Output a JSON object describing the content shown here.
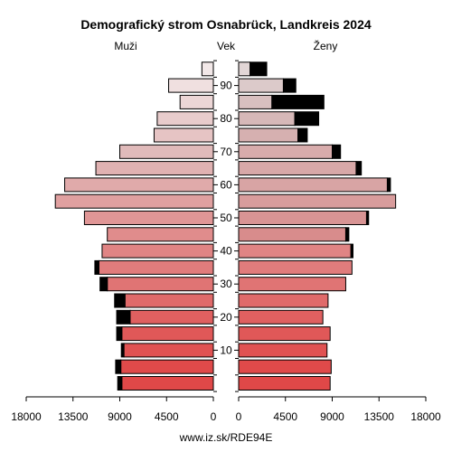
{
  "chart_data": {
    "type": "bar",
    "title": "Demografický strom Osnabrück, Landkreis 2024",
    "left_label": "Muži",
    "center_label": "Vek",
    "right_label": "Ženy",
    "footer": "www.iz.sk/RDE94E",
    "x_ticks": [
      {
        "value": 18000,
        "label": "18000"
      },
      {
        "value": 13500,
        "label": "13500"
      },
      {
        "value": 9000,
        "label": "9000"
      },
      {
        "value": 4500,
        "label": "4500"
      },
      {
        "value": 0,
        "label": "0"
      }
    ],
    "age_ticks": [
      {
        "age": 10,
        "label": "10"
      },
      {
        "age": 20,
        "label": "20"
      },
      {
        "age": 30,
        "label": "30"
      },
      {
        "age": 40,
        "label": "40"
      },
      {
        "age": 50,
        "label": "50"
      },
      {
        "age": 60,
        "label": "60"
      },
      {
        "age": 70,
        "label": "70"
      },
      {
        "age": 80,
        "label": "80"
      },
      {
        "age": 90,
        "label": "90"
      }
    ],
    "xlim": [
      0,
      18000
    ],
    "series": [
      {
        "name": "Muži",
        "groups": [
          {
            "age": 0,
            "base": 8800,
            "extra": 400,
            "color": "#e04848"
          },
          {
            "age": 5,
            "base": 8900,
            "extra": 500,
            "color": "#e04a4a"
          },
          {
            "age": 10,
            "base": 8600,
            "extra": 250,
            "color": "#e05252"
          },
          {
            "age": 15,
            "base": 8800,
            "extra": 500,
            "color": "#e05858"
          },
          {
            "age": 20,
            "base": 8000,
            "extra": 1300,
            "color": "#e06060"
          },
          {
            "age": 25,
            "base": 8500,
            "extra": 1000,
            "color": "#e06a6a"
          },
          {
            "age": 30,
            "base": 10200,
            "extra": 700,
            "color": "#e07474"
          },
          {
            "age": 35,
            "base": 11000,
            "extra": 400,
            "color": "#e07c7c"
          },
          {
            "age": 40,
            "base": 10700,
            "extra": 0,
            "color": "#e08484"
          },
          {
            "age": 45,
            "base": 10200,
            "extra": 0,
            "color": "#e08c8c"
          },
          {
            "age": 50,
            "base": 12400,
            "extra": 0,
            "color": "#e09696"
          },
          {
            "age": 55,
            "base": 15200,
            "extra": 0,
            "color": "#e0a0a0"
          },
          {
            "age": 60,
            "base": 14300,
            "extra": 0,
            "color": "#e0aaaa"
          },
          {
            "age": 65,
            "base": 11300,
            "extra": 0,
            "color": "#e0b2b2"
          },
          {
            "age": 70,
            "base": 9000,
            "extra": 0,
            "color": "#e0baba"
          },
          {
            "age": 75,
            "base": 5700,
            "extra": 0,
            "color": "#e6c4c4"
          },
          {
            "age": 80,
            "base": 5400,
            "extra": 0,
            "color": "#e8cccc"
          },
          {
            "age": 85,
            "base": 3200,
            "extra": 0,
            "color": "#ecd6d6"
          },
          {
            "age": 90,
            "base": 4300,
            "extra": 0,
            "color": "#f0e0e0"
          },
          {
            "age": 95,
            "base": 1100,
            "extra": 0,
            "color": "#f2e8e8"
          }
        ]
      },
      {
        "name": "Ženy",
        "groups": [
          {
            "age": 0,
            "base": 8800,
            "extra": 0,
            "color": "#e04848"
          },
          {
            "age": 5,
            "base": 8900,
            "extra": 0,
            "color": "#e04a4a"
          },
          {
            "age": 10,
            "base": 8500,
            "extra": 0,
            "color": "#e05252"
          },
          {
            "age": 15,
            "base": 8800,
            "extra": 0,
            "color": "#e05858"
          },
          {
            "age": 20,
            "base": 8100,
            "extra": 0,
            "color": "#e06060"
          },
          {
            "age": 25,
            "base": 8600,
            "extra": 0,
            "color": "#e06a6a"
          },
          {
            "age": 30,
            "base": 10300,
            "extra": 0,
            "color": "#e07474"
          },
          {
            "age": 35,
            "base": 10900,
            "extra": 0,
            "color": "#e07c7c"
          },
          {
            "age": 40,
            "base": 10800,
            "extra": 200,
            "color": "#e08484"
          },
          {
            "age": 45,
            "base": 10300,
            "extra": 300,
            "color": "#d88c8c"
          },
          {
            "age": 50,
            "base": 12300,
            "extra": 200,
            "color": "#d89494"
          },
          {
            "age": 55,
            "base": 15100,
            "extra": 0,
            "color": "#d89c9c"
          },
          {
            "age": 60,
            "base": 14300,
            "extra": 300,
            "color": "#d8a4a4"
          },
          {
            "age": 65,
            "base": 11300,
            "extra": 500,
            "color": "#d8a8a8"
          },
          {
            "age": 70,
            "base": 9000,
            "extra": 800,
            "color": "#d8acac"
          },
          {
            "age": 75,
            "base": 5700,
            "extra": 900,
            "color": "#d6b0b0"
          },
          {
            "age": 80,
            "base": 5400,
            "extra": 2300,
            "color": "#d6b8b8"
          },
          {
            "age": 85,
            "base": 3200,
            "extra": 5000,
            "color": "#d8c0c0"
          },
          {
            "age": 90,
            "base": 4300,
            "extra": 1200,
            "color": "#dccaca"
          },
          {
            "age": 95,
            "base": 1100,
            "extra": 1600,
            "color": "#e2d6d6"
          }
        ]
      }
    ],
    "extra_color": "#000000",
    "grid": false,
    "legend": "none"
  }
}
